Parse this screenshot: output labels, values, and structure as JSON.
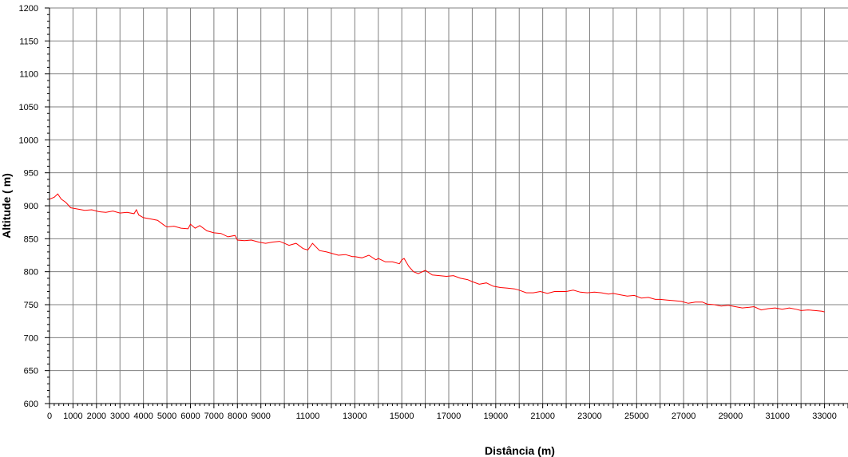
{
  "chart_data": {
    "type": "line",
    "title": "",
    "xlabel": "Distância (m)",
    "ylabel": "Altitude ( m)",
    "xlim": [
      0,
      34000
    ],
    "ylim": [
      600,
      1200
    ],
    "grid": true,
    "legend": "none",
    "x_ticks": [
      0,
      1000,
      2000,
      3000,
      4000,
      5000,
      6000,
      7000,
      8000,
      9000,
      11000,
      13000,
      15000,
      17000,
      19000,
      21000,
      23000,
      25000,
      27000,
      29000,
      31000,
      33000
    ],
    "y_ticks": [
      600,
      650,
      700,
      750,
      800,
      850,
      900,
      950,
      1000,
      1050,
      1100,
      1150,
      1200
    ],
    "series": [
      {
        "color": "#ff0000",
        "x": [
          0,
          200,
          350,
          500,
          700,
          900,
          1200,
          1500,
          1800,
          2100,
          2400,
          2700,
          3000,
          3300,
          3600,
          3700,
          3800,
          4000,
          4300,
          4600,
          4900,
          5000,
          5300,
          5600,
          5900,
          6000,
          6200,
          6400,
          6700,
          7000,
          7300,
          7600,
          7900,
          8000,
          8300,
          8600,
          8900,
          9200,
          9500,
          9800,
          10000,
          10200,
          10500,
          10800,
          11000,
          11200,
          11500,
          11800,
          12000,
          12300,
          12600,
          12900,
          13000,
          13300,
          13600,
          13900,
          14000,
          14300,
          14600,
          14900,
          15000,
          15100,
          15300,
          15500,
          15700,
          16000,
          16300,
          16600,
          16900,
          17200,
          17500,
          17800,
          18000,
          18300,
          18600,
          18900,
          19200,
          19500,
          19800,
          20000,
          20300,
          20600,
          20900,
          21200,
          21500,
          21800,
          22000,
          22300,
          22600,
          22900,
          23200,
          23500,
          23800,
          24000,
          24300,
          24600,
          24900,
          25200,
          25500,
          25800,
          26000,
          26300,
          26600,
          26900,
          27200,
          27500,
          27800,
          28000,
          28300,
          28600,
          28900,
          29200,
          29500,
          29800,
          30000,
          30300,
          30600,
          30900,
          31200,
          31500,
          31800,
          32000,
          32300,
          32600,
          32900,
          33000
        ],
        "values": [
          910,
          913,
          918,
          910,
          905,
          897,
          895,
          893,
          894,
          891,
          890,
          892,
          889,
          890,
          888,
          894,
          886,
          882,
          880,
          878,
          870,
          868,
          869,
          866,
          865,
          872,
          866,
          870,
          862,
          859,
          858,
          853,
          855,
          848,
          847,
          848,
          845,
          843,
          845,
          846,
          843,
          840,
          843,
          835,
          833,
          843,
          832,
          830,
          828,
          825,
          826,
          823,
          823,
          821,
          825,
          818,
          820,
          815,
          815,
          812,
          818,
          820,
          808,
          800,
          797,
          802,
          795,
          794,
          793,
          794,
          790,
          788,
          785,
          781,
          783,
          778,
          776,
          775,
          774,
          772,
          768,
          768,
          770,
          767,
          770,
          770,
          770,
          772,
          769,
          768,
          769,
          768,
          766,
          767,
          765,
          763,
          764,
          760,
          761,
          758,
          758,
          757,
          756,
          755,
          752,
          754,
          754,
          751,
          750,
          748,
          749,
          747,
          745,
          746,
          747,
          742,
          744,
          745,
          743,
          745,
          743,
          741,
          742,
          741,
          740,
          739
        ]
      }
    ]
  }
}
